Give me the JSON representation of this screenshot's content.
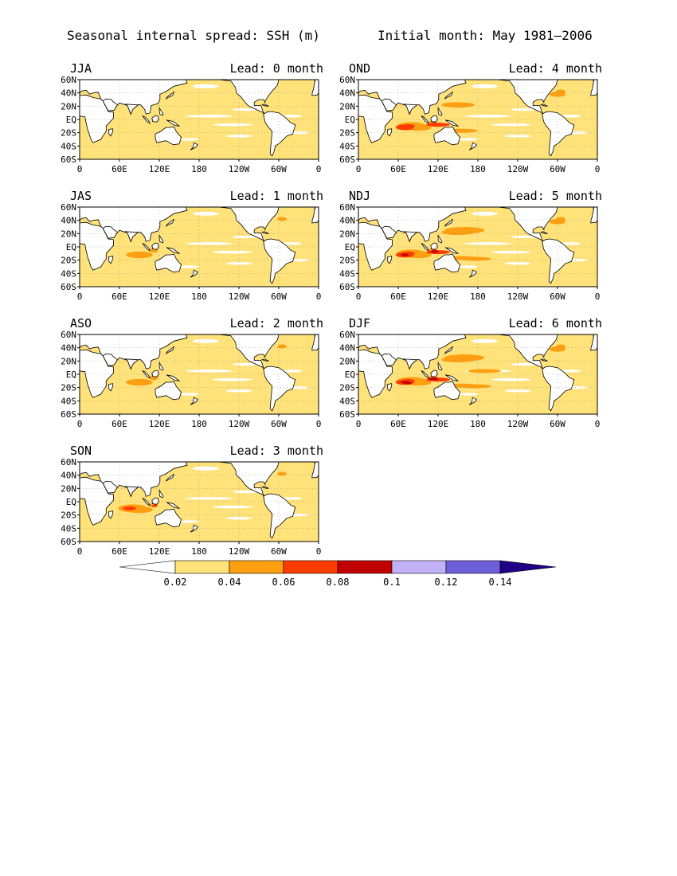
{
  "title_left": "Seasonal internal spread: SSH (m)",
  "title_right": "Initial month: May 1981–2006",
  "y_ticks": [
    "60N",
    "40N",
    "20N",
    "EQ",
    "20S",
    "40S",
    "60S"
  ],
  "x_ticks": [
    "0",
    "60E",
    "120E",
    "180",
    "120W",
    "60W",
    "0"
  ],
  "panels": [
    {
      "season": "JJA",
      "lead": "Lead: 0 month",
      "intensity": 0
    },
    {
      "season": "OND",
      "lead": "Lead: 4 month",
      "intensity": 4
    },
    {
      "season": "JAS",
      "lead": "Lead: 1 month",
      "intensity": 1
    },
    {
      "season": "NDJ",
      "lead": "Lead: 5 month",
      "intensity": 5
    },
    {
      "season": "ASO",
      "lead": "Lead: 2 month",
      "intensity": 2
    },
    {
      "season": "DJF",
      "lead": "Lead: 6 month",
      "intensity": 6
    },
    {
      "season": "SON",
      "lead": "Lead: 3 month",
      "intensity": 3
    }
  ],
  "colorbar": {
    "levels": [
      "0.02",
      "0.04",
      "0.06",
      "0.08",
      "0.1",
      "0.12",
      "0.14"
    ],
    "colors": [
      "#ffffff",
      "#ffe27a",
      "#fd9f10",
      "#ff3c00",
      "#c00000",
      "#c1b2f5",
      "#6f5ed9",
      "#210088"
    ]
  },
  "map_colors": {
    "land": "#ffffff",
    "ocean_low": "#ffe27a",
    "ocean_mid": "#fd9f10",
    "ocean_high": "#ff3c00",
    "ocean_max": "#c00000"
  }
}
